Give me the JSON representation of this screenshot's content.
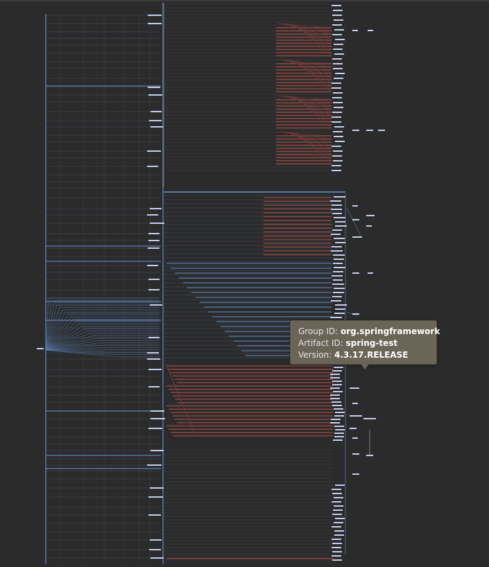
{
  "diagram": {
    "type": "maven-dependency-graph",
    "colors": {
      "background": "#2b2b2b",
      "tree_edge": "#5b82b8",
      "tree_edge_faint": "#3f4e63",
      "conflict_edge": "#b4504a",
      "conflict_edge_faint": "#6a3b39",
      "node": "#c7cff0",
      "guide": "#4a4a4a"
    }
  },
  "tooltip": {
    "group_label": "Group ID:",
    "group_value": "org.springframework",
    "artifact_label": "Artifact ID:",
    "artifact_value": "spring-test",
    "version_label": "Version:",
    "version_value": "4.3.17.RELEASE"
  }
}
